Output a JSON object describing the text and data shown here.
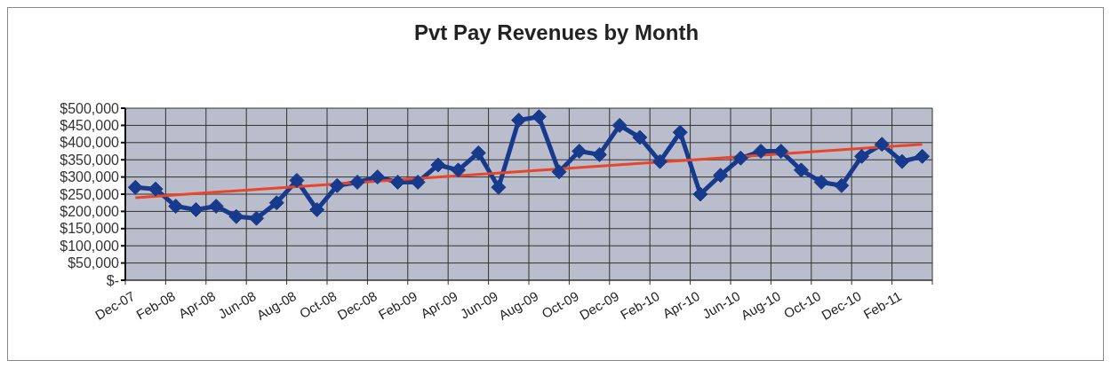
{
  "chart_data": {
    "type": "line",
    "title": "Pvt Pay Revenues by Month",
    "categories": [
      "Dec-07",
      null,
      "Feb-08",
      null,
      "Apr-08",
      null,
      "Jun-08",
      null,
      "Aug-08",
      null,
      "Oct-08",
      null,
      "Dec-08",
      null,
      "Feb-09",
      null,
      "Apr-09",
      null,
      "Jun-09",
      null,
      "Aug-09",
      null,
      "Oct-09",
      null,
      "Dec-09",
      null,
      "Feb-10",
      null,
      "Apr-10",
      null,
      "Jun-10",
      null,
      "Aug-10",
      null,
      "Oct-10",
      null,
      "Dec-10",
      null,
      "Feb-11",
      null
    ],
    "series": [
      {
        "type": "line",
        "color": "#173a8c",
        "marker": "diamond",
        "values": [
          270000,
          265000,
          215000,
          205000,
          215000,
          185000,
          180000,
          225000,
          290000,
          205000,
          275000,
          285000,
          300000,
          285000,
          285000,
          335000,
          320000,
          370000,
          270000,
          465000,
          475000,
          315000,
          375000,
          365000,
          450000,
          415000,
          345000,
          430000,
          250000,
          305000,
          355000,
          375000,
          375000,
          320000,
          285000,
          275000,
          360000,
          395000,
          345000,
          360000
        ]
      },
      {
        "type": "line",
        "color": "#e8452a",
        "marker": "none",
        "values": [
          240000,
          null,
          null,
          null,
          null,
          null,
          null,
          null,
          null,
          null,
          null,
          null,
          null,
          null,
          null,
          null,
          null,
          null,
          null,
          null,
          null,
          null,
          null,
          null,
          null,
          null,
          null,
          null,
          null,
          null,
          null,
          null,
          null,
          null,
          null,
          null,
          null,
          null,
          null,
          395000
        ]
      }
    ],
    "ylim": [
      0,
      500000
    ],
    "yticks": [
      {
        "value": 0,
        "label": "$-"
      },
      {
        "value": 50000,
        "label": "$50,000"
      },
      {
        "value": 100000,
        "label": "$100,000"
      },
      {
        "value": 150000,
        "label": "$150,000"
      },
      {
        "value": 200000,
        "label": "$200,000"
      },
      {
        "value": 250000,
        "label": "$250,000"
      },
      {
        "value": 300000,
        "label": "$300,000"
      },
      {
        "value": 350000,
        "label": "$350,000"
      },
      {
        "value": 400000,
        "label": "$400,000"
      },
      {
        "value": 450000,
        "label": "$450,000"
      },
      {
        "value": 500000,
        "label": "$500,000"
      }
    ],
    "grid": true,
    "line_style": "solid"
  }
}
